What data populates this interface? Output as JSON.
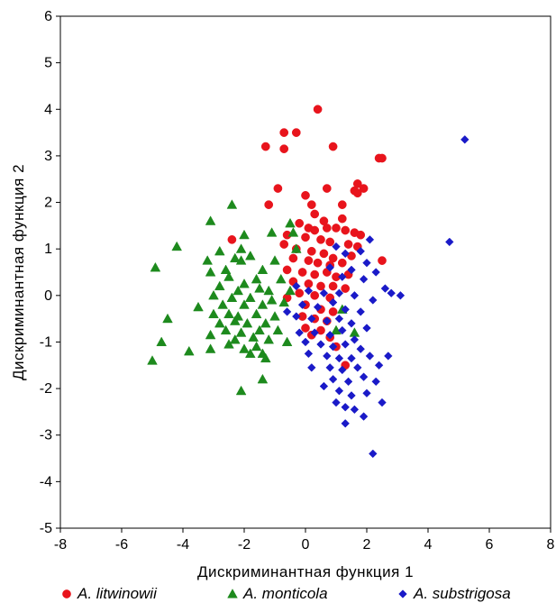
{
  "chart_data": {
    "type": "scatter",
    "xlabel": "Дискриминантная функция 1",
    "ylabel": "Дискриминантная функция 2",
    "xlim": [
      -8,
      8
    ],
    "ylim": [
      -5,
      6
    ],
    "xticks": [
      "-8",
      "-6",
      "-4",
      "-2",
      "0",
      "2",
      "4",
      "6",
      "8"
    ],
    "yticks": [
      "-5",
      "-4",
      "-3",
      "-2",
      "-1",
      "0",
      "1",
      "2",
      "3",
      "4",
      "5",
      "6"
    ],
    "grid": false,
    "legend": "bottom",
    "series": [
      {
        "name": "A. litwinowii",
        "marker": "circle",
        "color": "#e8141c",
        "points": [
          [
            0.4,
            4.0
          ],
          [
            -0.7,
            3.5
          ],
          [
            -0.3,
            3.5
          ],
          [
            -1.3,
            3.2
          ],
          [
            -0.7,
            3.15
          ],
          [
            0.9,
            3.2
          ],
          [
            2.4,
            2.95
          ],
          [
            2.5,
            2.95
          ],
          [
            1.7,
            2.4
          ],
          [
            1.9,
            2.3
          ],
          [
            1.6,
            2.25
          ],
          [
            1.7,
            2.2
          ],
          [
            -0.9,
            2.3
          ],
          [
            0.7,
            2.3
          ],
          [
            0.0,
            2.15
          ],
          [
            -1.2,
            1.95
          ],
          [
            0.2,
            1.95
          ],
          [
            1.2,
            1.95
          ],
          [
            0.3,
            1.75
          ],
          [
            0.6,
            1.6
          ],
          [
            1.2,
            1.65
          ],
          [
            -0.2,
            1.55
          ],
          [
            0.1,
            1.45
          ],
          [
            0.3,
            1.4
          ],
          [
            0.7,
            1.45
          ],
          [
            1.0,
            1.45
          ],
          [
            1.3,
            1.4
          ],
          [
            1.6,
            1.35
          ],
          [
            1.8,
            1.3
          ],
          [
            -0.6,
            1.3
          ],
          [
            0.0,
            1.25
          ],
          [
            0.5,
            1.2
          ],
          [
            0.8,
            1.15
          ],
          [
            1.4,
            1.1
          ],
          [
            1.7,
            1.05
          ],
          [
            -2.4,
            1.2
          ],
          [
            -0.7,
            1.1
          ],
          [
            -0.3,
            1.0
          ],
          [
            0.2,
            0.95
          ],
          [
            0.6,
            0.9
          ],
          [
            0.9,
            0.8
          ],
          [
            1.5,
            0.85
          ],
          [
            -0.4,
            0.8
          ],
          [
            0.1,
            0.75
          ],
          [
            0.4,
            0.7
          ],
          [
            0.8,
            0.65
          ],
          [
            1.2,
            0.7
          ],
          [
            2.5,
            0.75
          ],
          [
            -0.6,
            0.55
          ],
          [
            -0.1,
            0.5
          ],
          [
            0.3,
            0.45
          ],
          [
            0.7,
            0.5
          ],
          [
            1.0,
            0.4
          ],
          [
            1.4,
            0.45
          ],
          [
            -0.4,
            0.3
          ],
          [
            0.1,
            0.25
          ],
          [
            0.5,
            0.2
          ],
          [
            0.9,
            0.2
          ],
          [
            1.3,
            0.15
          ],
          [
            -0.2,
            0.05
          ],
          [
            0.3,
            0.0
          ],
          [
            0.8,
            -0.05
          ],
          [
            -0.6,
            -0.05
          ],
          [
            0.0,
            -0.2
          ],
          [
            0.5,
            -0.3
          ],
          [
            0.9,
            -0.35
          ],
          [
            -0.1,
            -0.45
          ],
          [
            0.3,
            -0.5
          ],
          [
            0.7,
            -0.55
          ],
          [
            0.0,
            -0.7
          ],
          [
            0.5,
            -0.75
          ],
          [
            0.2,
            -0.85
          ],
          [
            0.8,
            -0.9
          ],
          [
            1.3,
            -1.5
          ],
          [
            1.0,
            -1.1
          ]
        ]
      },
      {
        "name": "A. monticola",
        "marker": "triangle",
        "color": "#1d8a1d",
        "points": [
          [
            -2.4,
            1.95
          ],
          [
            -3.1,
            1.6
          ],
          [
            -0.5,
            1.55
          ],
          [
            -0.4,
            1.35
          ],
          [
            -2.0,
            1.3
          ],
          [
            -1.1,
            1.35
          ],
          [
            -4.2,
            1.05
          ],
          [
            -2.1,
            1.0
          ],
          [
            -2.8,
            0.95
          ],
          [
            -0.3,
            1.0
          ],
          [
            -1.8,
            0.85
          ],
          [
            -3.2,
            0.75
          ],
          [
            -2.3,
            0.8
          ],
          [
            -2.1,
            0.75
          ],
          [
            -1.0,
            0.75
          ],
          [
            -4.9,
            0.6
          ],
          [
            -2.6,
            0.55
          ],
          [
            -1.4,
            0.55
          ],
          [
            -3.1,
            0.5
          ],
          [
            -2.5,
            0.4
          ],
          [
            -1.6,
            0.35
          ],
          [
            -0.8,
            0.35
          ],
          [
            -2.0,
            0.25
          ],
          [
            -2.8,
            0.2
          ],
          [
            -1.5,
            0.15
          ],
          [
            -1.2,
            0.1
          ],
          [
            -0.5,
            0.1
          ],
          [
            -2.2,
            0.1
          ],
          [
            -3.0,
            0.0
          ],
          [
            -2.4,
            -0.05
          ],
          [
            -1.8,
            -0.05
          ],
          [
            -1.1,
            -0.1
          ],
          [
            -3.5,
            -0.25
          ],
          [
            -2.7,
            -0.2
          ],
          [
            -2.0,
            -0.2
          ],
          [
            -1.4,
            -0.2
          ],
          [
            -0.7,
            -0.15
          ],
          [
            -3.0,
            -0.4
          ],
          [
            -2.5,
            -0.4
          ],
          [
            -2.2,
            -0.45
          ],
          [
            -1.6,
            -0.4
          ],
          [
            -1.0,
            -0.45
          ],
          [
            -4.5,
            -0.5
          ],
          [
            -2.8,
            -0.6
          ],
          [
            -2.3,
            -0.55
          ],
          [
            -1.9,
            -0.6
          ],
          [
            -1.3,
            -0.6
          ],
          [
            -2.6,
            -0.75
          ],
          [
            -2.1,
            -0.8
          ],
          [
            -1.5,
            -0.75
          ],
          [
            -0.9,
            -0.75
          ],
          [
            -3.1,
            -0.85
          ],
          [
            -1.7,
            -0.9
          ],
          [
            -2.3,
            -0.95
          ],
          [
            -1.2,
            -0.95
          ],
          [
            -4.7,
            -1.0
          ],
          [
            -2.5,
            -1.05
          ],
          [
            -1.6,
            -1.1
          ],
          [
            -2.0,
            -1.15
          ],
          [
            -1.4,
            -1.25
          ],
          [
            -3.8,
            -1.2
          ],
          [
            -3.1,
            -1.15
          ],
          [
            -1.8,
            -1.25
          ],
          [
            -1.3,
            -1.35
          ],
          [
            -0.6,
            -1.0
          ],
          [
            -5.0,
            -1.4
          ],
          [
            -1.4,
            -1.8
          ],
          [
            -2.1,
            -2.05
          ],
          [
            1.0,
            -0.75
          ],
          [
            1.6,
            -0.8
          ],
          [
            1.2,
            -0.3
          ]
        ]
      },
      {
        "name": "A. substrigosa",
        "marker": "diamond",
        "color": "#1a1ac8",
        "points": [
          [
            5.2,
            3.35
          ],
          [
            4.7,
            1.15
          ],
          [
            2.1,
            1.2
          ],
          [
            1.0,
            1.05
          ],
          [
            1.8,
            0.95
          ],
          [
            1.3,
            0.9
          ],
          [
            2.0,
            0.7
          ],
          [
            0.8,
            0.6
          ],
          [
            1.5,
            0.55
          ],
          [
            2.3,
            0.5
          ],
          [
            1.2,
            0.4
          ],
          [
            1.9,
            0.35
          ],
          [
            2.6,
            0.15
          ],
          [
            3.1,
            0.0
          ],
          [
            2.8,
            0.05
          ],
          [
            -0.3,
            0.2
          ],
          [
            0.1,
            0.1
          ],
          [
            0.6,
            0.05
          ],
          [
            1.1,
            0.05
          ],
          [
            1.6,
            0.0
          ],
          [
            2.2,
            -0.1
          ],
          [
            -0.6,
            -0.35
          ],
          [
            -0.1,
            -0.2
          ],
          [
            0.4,
            -0.25
          ],
          [
            0.9,
            -0.15
          ],
          [
            1.3,
            -0.3
          ],
          [
            1.8,
            -0.35
          ],
          [
            -0.3,
            -0.45
          ],
          [
            0.2,
            -0.5
          ],
          [
            0.7,
            -0.55
          ],
          [
            1.1,
            -0.5
          ],
          [
            1.5,
            -0.6
          ],
          [
            2.0,
            -0.7
          ],
          [
            -0.2,
            -0.8
          ],
          [
            0.3,
            -0.8
          ],
          [
            0.8,
            -0.85
          ],
          [
            1.2,
            -0.75
          ],
          [
            1.6,
            -0.95
          ],
          [
            0.0,
            -1.0
          ],
          [
            0.5,
            -1.05
          ],
          [
            0.9,
            -1.1
          ],
          [
            1.3,
            -1.05
          ],
          [
            1.8,
            -1.15
          ],
          [
            0.1,
            -1.25
          ],
          [
            0.7,
            -1.3
          ],
          [
            1.1,
            -1.35
          ],
          [
            1.5,
            -1.35
          ],
          [
            2.1,
            -1.3
          ],
          [
            2.7,
            -1.3
          ],
          [
            0.2,
            -1.55
          ],
          [
            0.8,
            -1.55
          ],
          [
            1.2,
            -1.6
          ],
          [
            1.7,
            -1.55
          ],
          [
            2.4,
            -1.5
          ],
          [
            0.9,
            -1.8
          ],
          [
            1.4,
            -1.85
          ],
          [
            1.9,
            -1.75
          ],
          [
            2.3,
            -1.85
          ],
          [
            0.6,
            -1.95
          ],
          [
            1.1,
            -2.05
          ],
          [
            1.5,
            -2.15
          ],
          [
            2.0,
            -2.1
          ],
          [
            1.0,
            -2.3
          ],
          [
            1.3,
            -2.4
          ],
          [
            1.6,
            -2.45
          ],
          [
            2.5,
            -2.3
          ],
          [
            1.9,
            -2.6
          ],
          [
            1.3,
            -2.75
          ],
          [
            2.2,
            -3.4
          ]
        ]
      }
    ]
  }
}
